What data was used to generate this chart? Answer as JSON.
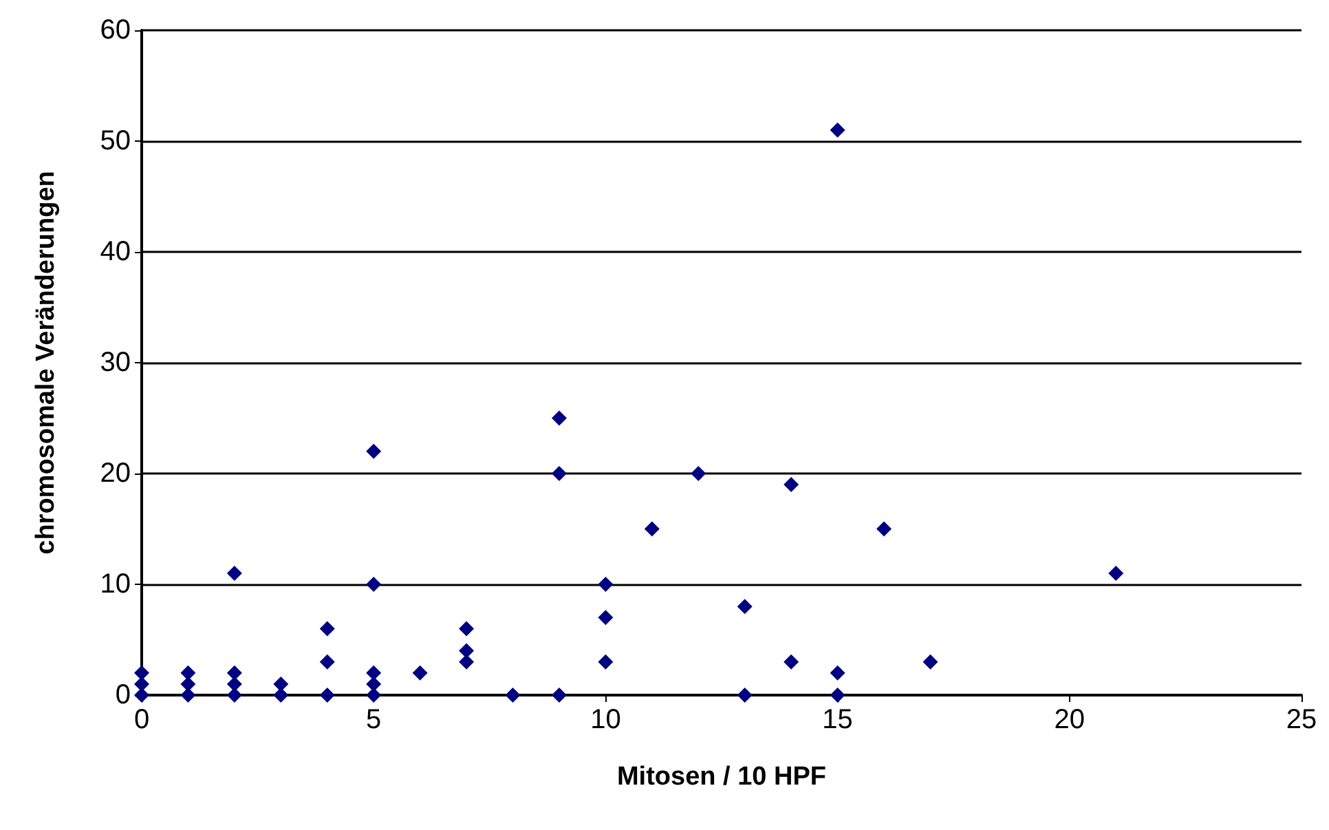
{
  "chart_data": {
    "type": "scatter",
    "xlabel": "Mitosen / 10 HPF",
    "ylabel": "chromosomale Veränderungen",
    "x": [
      0,
      0,
      0,
      1,
      1,
      1,
      2,
      2,
      2,
      2,
      3,
      3,
      4,
      4,
      4,
      5,
      5,
      5,
      5,
      5,
      6,
      7,
      7,
      7,
      8,
      9,
      9,
      9,
      10,
      10,
      10,
      11,
      12,
      13,
      13,
      14,
      14,
      15,
      15,
      15,
      16,
      17,
      21
    ],
    "series": [
      {
        "color": "#000080",
        "values": [
          0,
          1,
          2,
          0,
          1,
          2,
          0,
          1,
          2,
          11,
          0,
          1,
          0,
          3,
          6,
          0,
          1,
          2,
          10,
          22,
          2,
          3,
          4,
          6,
          0,
          0,
          20,
          25,
          3,
          7,
          10,
          15,
          20,
          0,
          8,
          3,
          19,
          0,
          2,
          51,
          15,
          3,
          11
        ]
      }
    ],
    "xlim": [
      0,
      25
    ],
    "xticks": [
      0,
      5,
      10,
      15,
      20,
      25
    ],
    "ylim": [
      0,
      60
    ],
    "yticks": [
      0,
      10,
      20,
      30,
      40,
      50,
      60
    ],
    "grid": "y",
    "marker": "diamond"
  }
}
